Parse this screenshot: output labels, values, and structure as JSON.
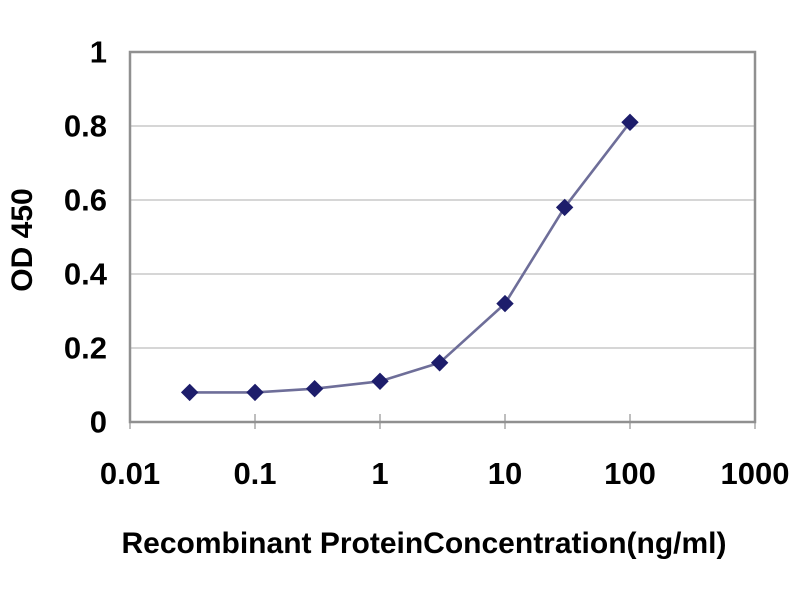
{
  "figure": {
    "background": "#ffffff"
  },
  "chart_data": {
    "type": "line",
    "title": "",
    "xlabel": "Recombinant ProteinConcentration(ng/ml)",
    "ylabel": "OD 450",
    "x_scale": "log",
    "xlim": [
      0.01,
      1000
    ],
    "ylim": [
      0,
      1
    ],
    "x": [
      0.03,
      0.1,
      0.3,
      1,
      3,
      10,
      30,
      100
    ],
    "y": [
      0.08,
      0.08,
      0.09,
      0.11,
      0.16,
      0.32,
      0.58,
      0.81
    ],
    "x_tick_labels": [
      "0.01",
      "0.1",
      "1",
      "10",
      "100",
      "1000"
    ],
    "y_tick_labels": [
      "0",
      "0.2",
      "0.4",
      "0.6",
      "0.8",
      "1"
    ],
    "grid": "horizontal",
    "legend_position": "none",
    "marker": "diamond",
    "colors": {
      "marker": "#1d1d6b",
      "line": "#6e6e99",
      "grid": "#c9c9c9",
      "axis_border": "#909090",
      "tick": "#a8a8a8",
      "text": "#000000",
      "background": "#ffffff"
    }
  }
}
